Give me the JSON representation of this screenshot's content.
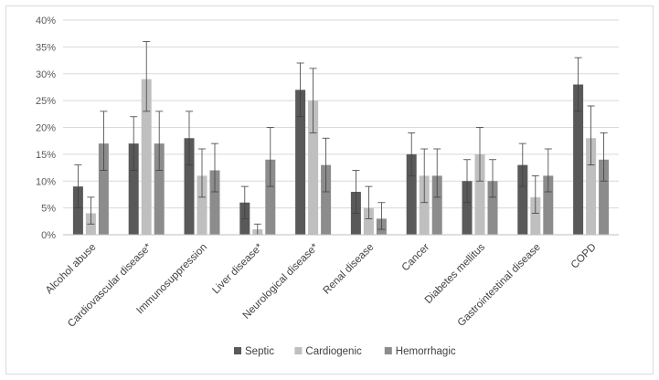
{
  "chart_data": {
    "type": "bar",
    "title": "",
    "xlabel": "",
    "ylabel": "",
    "ylim": [
      0,
      0.4
    ],
    "yticks": [
      "0%",
      "5%",
      "10%",
      "15%",
      "20%",
      "25%",
      "30%",
      "35%",
      "40%"
    ],
    "grid": "horizontal",
    "legend_position": "bottom",
    "categories": [
      "Alcohol abuse",
      "Cardiovascular disease*",
      "Immunosuppression",
      "Liver disease*",
      "Neurological disease*",
      "Renal disease",
      "Cancer",
      "Diabetes mellitus",
      "Gastrointestinal disease",
      "COPD"
    ],
    "series": [
      {
        "name": "Septic",
        "color": "#595959",
        "values": [
          0.09,
          0.17,
          0.18,
          0.06,
          0.27,
          0.08,
          0.15,
          0.1,
          0.13,
          0.28
        ],
        "error_low": [
          0.05,
          0.12,
          0.13,
          0.03,
          0.22,
          0.04,
          0.11,
          0.06,
          0.09,
          0.23
        ],
        "error_high": [
          0.13,
          0.22,
          0.23,
          0.09,
          0.32,
          0.12,
          0.19,
          0.14,
          0.17,
          0.33
        ]
      },
      {
        "name": "Cardiogenic",
        "color": "#bfbfbf",
        "values": [
          0.04,
          0.29,
          0.11,
          0.01,
          0.25,
          0.05,
          0.11,
          0.15,
          0.07,
          0.18
        ],
        "error_low": [
          0.02,
          0.23,
          0.07,
          0.0,
          0.19,
          0.03,
          0.06,
          0.1,
          0.04,
          0.13
        ],
        "error_high": [
          0.07,
          0.36,
          0.16,
          0.02,
          0.31,
          0.09,
          0.16,
          0.2,
          0.11,
          0.24
        ]
      },
      {
        "name": "Hemorrhagic",
        "color": "#8c8c8c",
        "values": [
          0.17,
          0.17,
          0.12,
          0.14,
          0.13,
          0.03,
          0.11,
          0.1,
          0.11,
          0.14
        ],
        "error_low": [
          0.12,
          0.12,
          0.08,
          0.09,
          0.08,
          0.01,
          0.07,
          0.07,
          0.08,
          0.1
        ],
        "error_high": [
          0.23,
          0.23,
          0.17,
          0.2,
          0.18,
          0.06,
          0.16,
          0.14,
          0.16,
          0.19
        ]
      }
    ]
  }
}
